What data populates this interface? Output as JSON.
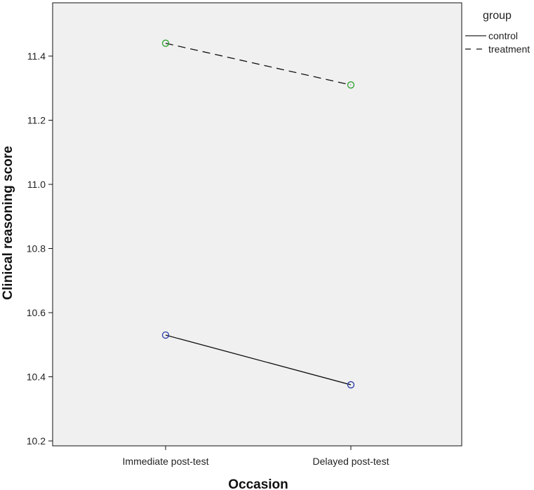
{
  "chart_data": {
    "type": "line",
    "xlabel": "Occasion",
    "ylabel": "Clinical reasoning score",
    "categories": [
      "Immediate post-test",
      "Delayed post-test"
    ],
    "ylim": [
      10.2,
      11.6
    ],
    "yticks": [
      "10.2",
      "10.4",
      "10.6",
      "10.8",
      "11.0",
      "11.2",
      "11.4"
    ],
    "grid": false,
    "legend": {
      "title": "group",
      "position": "top-right"
    },
    "series": [
      {
        "name": "control",
        "values": [
          10.53,
          10.375
        ],
        "line_style": "solid",
        "marker": "open-circle",
        "marker_color": "#2a3ba8",
        "line_color": "#111111"
      },
      {
        "name": "treatment",
        "values": [
          11.44,
          11.31
        ],
        "line_style": "dashed",
        "marker": "open-circle",
        "marker_color": "#2ca02c",
        "line_color": "#111111"
      }
    ]
  },
  "colors": {
    "plot_background": "#f0f0f0",
    "axis": "#111111"
  }
}
